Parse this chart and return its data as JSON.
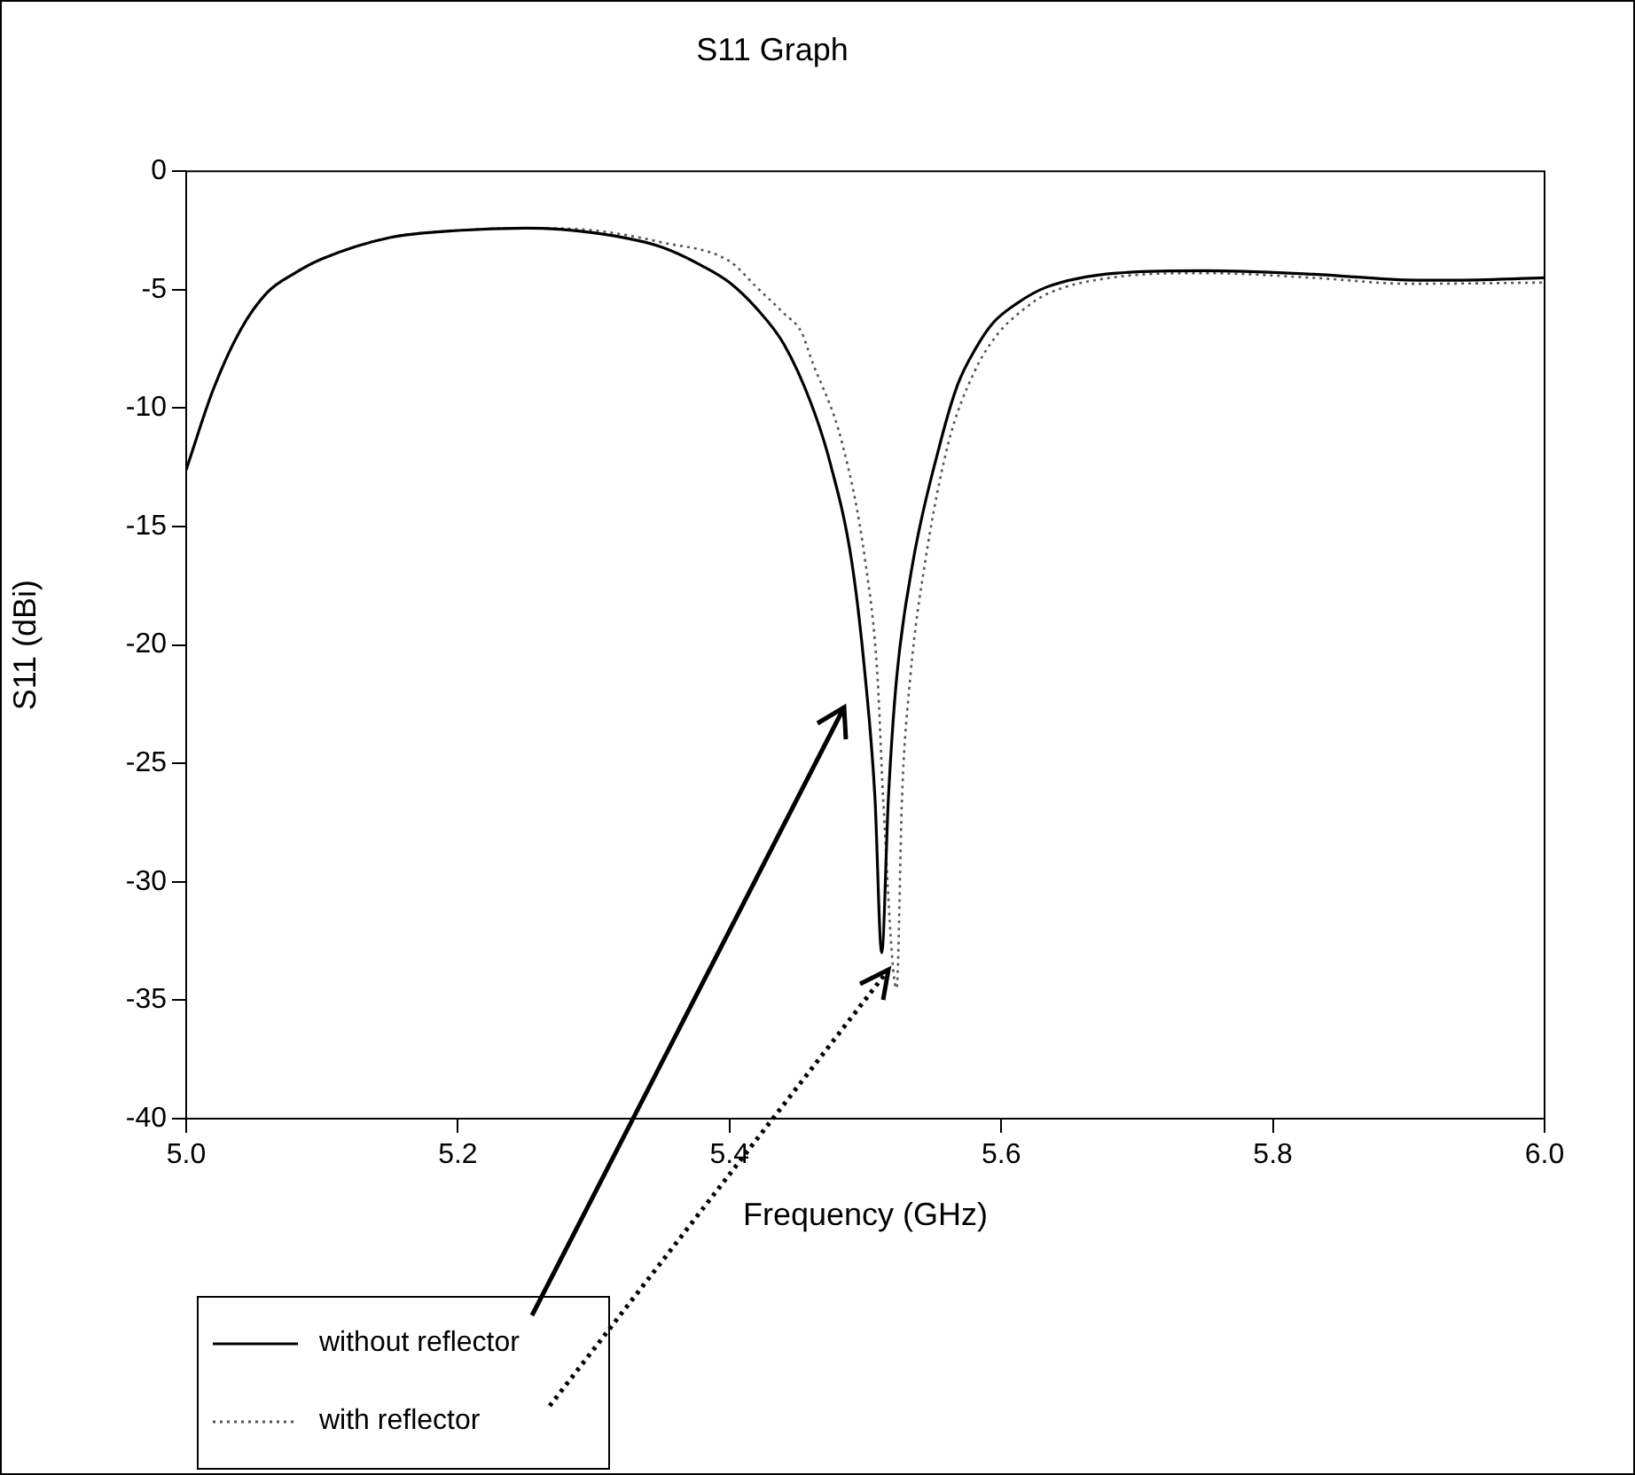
{
  "chart_data": {
    "type": "line",
    "title": "S11 Graph",
    "xlabel": "Frequency (GHz)",
    "ylabel": "S11 (dBi)",
    "xlim": [
      5.0,
      6.0
    ],
    "xticks": [
      {
        "value": 5.0,
        "label": "5.0"
      },
      {
        "value": 5.2,
        "label": "5.2"
      },
      {
        "value": 5.4,
        "label": "5.4"
      },
      {
        "value": 5.6,
        "label": "5.6"
      },
      {
        "value": 5.8,
        "label": "5.8"
      },
      {
        "value": 6.0,
        "label": "6.0"
      }
    ],
    "ylim": [
      -40,
      0
    ],
    "yticks": [
      -40,
      -35,
      -30,
      -25,
      -20,
      -15,
      -10,
      -5,
      0
    ],
    "grid": false,
    "legend": "bottom left",
    "marker": "none",
    "series": [
      {
        "name": "without reflector",
        "color": "#000000",
        "line_style": "solid",
        "x": [
          5.0,
          5.02,
          5.04,
          5.06,
          5.08,
          5.1,
          5.15,
          5.2,
          5.25,
          5.3,
          5.35,
          5.38,
          5.4,
          5.42,
          5.44,
          5.46,
          5.474,
          5.49,
          5.5,
          5.507,
          5.512,
          5.517,
          5.523,
          5.535,
          5.555,
          5.568,
          5.581,
          5.594,
          5.611,
          5.633,
          5.685,
          5.75,
          5.83,
          5.907,
          5.93,
          6.0
        ],
        "values": [
          -12.6,
          -9.2,
          -6.7,
          -5.1,
          -4.3,
          -3.7,
          -2.8,
          -2.5,
          -2.4,
          -2.6,
          -3.2,
          -4.0,
          -4.7,
          -5.8,
          -7.3,
          -9.8,
          -12.3,
          -16.5,
          -21.4,
          -26.4,
          -33.0,
          -26.4,
          -21.4,
          -16.5,
          -11.5,
          -9.0,
          -7.5,
          -6.4,
          -5.6,
          -4.9,
          -4.3,
          -4.2,
          -4.35,
          -4.6,
          -4.6,
          -4.5
        ]
      },
      {
        "name": "with reflector",
        "color": "#555555",
        "line_style": "dotted",
        "x": [
          5.0,
          5.02,
          5.04,
          5.06,
          5.08,
          5.1,
          5.15,
          5.2,
          5.25,
          5.3,
          5.35,
          5.4,
          5.42,
          5.44,
          5.453,
          5.46,
          5.483,
          5.5,
          5.509,
          5.513,
          5.523,
          5.527,
          5.533,
          5.544,
          5.561,
          5.58,
          5.597,
          5.615,
          5.633,
          5.68,
          5.75,
          5.83,
          5.9,
          6.0
        ],
        "values": [
          -12.6,
          -9.2,
          -6.7,
          -5.1,
          -4.3,
          -3.7,
          -2.8,
          -2.5,
          -2.4,
          -2.5,
          -3.0,
          -3.8,
          -4.9,
          -6.0,
          -6.8,
          -7.9,
          -11.5,
          -16.5,
          -21.4,
          -26.4,
          -34.5,
          -26.4,
          -21.4,
          -16.5,
          -11.5,
          -8.5,
          -6.9,
          -5.9,
          -5.2,
          -4.5,
          -4.3,
          -4.5,
          -4.75,
          -4.7
        ]
      }
    ]
  }
}
